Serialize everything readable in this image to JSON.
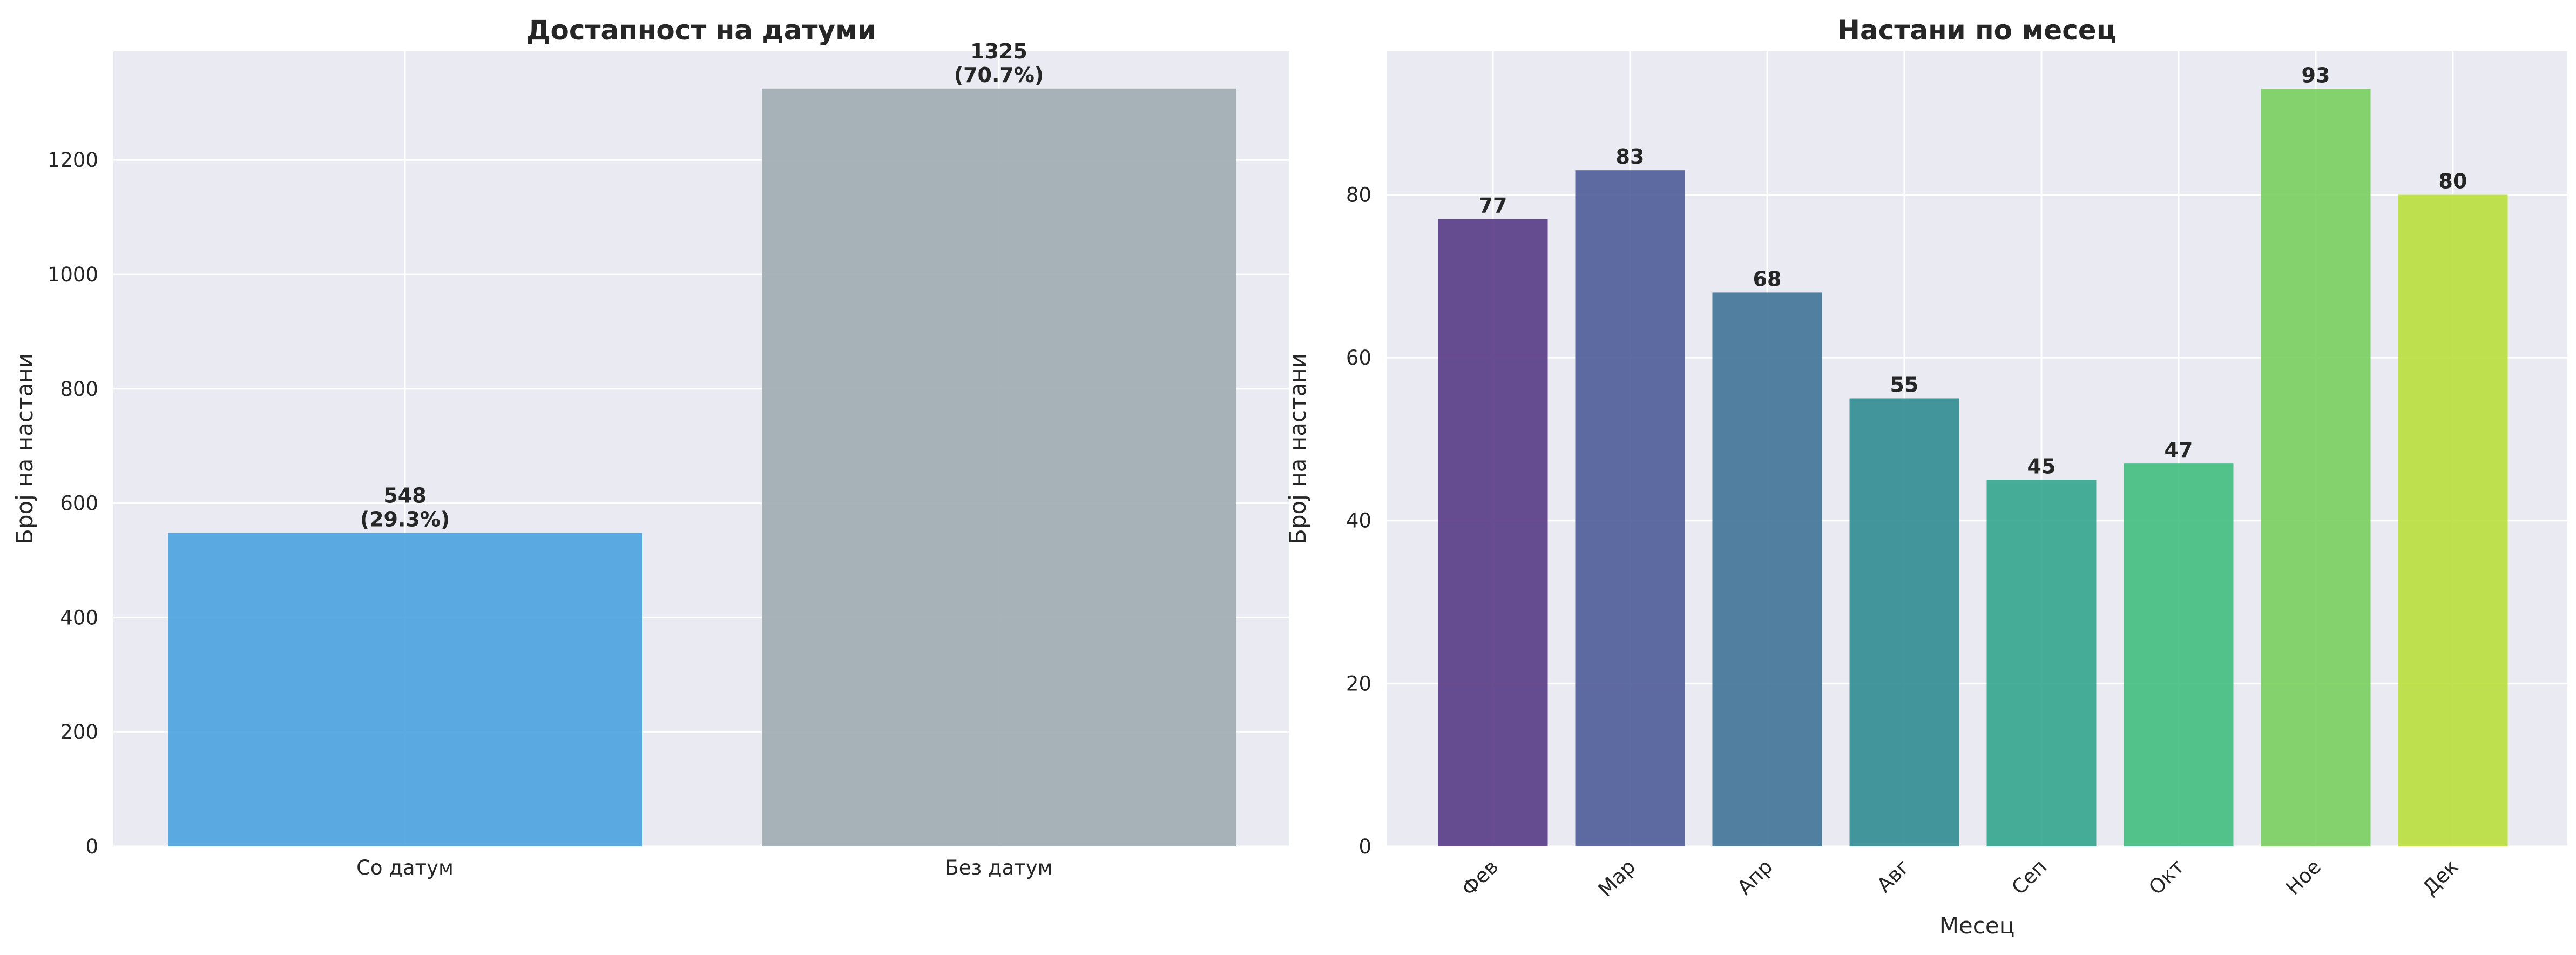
{
  "chart_data": [
    {
      "type": "bar",
      "title": "Достапност на датуми",
      "xlabel": "",
      "ylabel": "Број на настани",
      "categories": [
        "Со датум",
        "Без датум"
      ],
      "values": [
        548,
        1325
      ],
      "value_labels": [
        "548\n(29.3%)",
        "1325\n(70.7%)"
      ],
      "colors": [
        "#4aa3df",
        "#9eabb1"
      ],
      "ylim": [
        0,
        1390
      ],
      "yticks": [
        0,
        200,
        400,
        600,
        800,
        1000,
        1200
      ],
      "grid": true
    },
    {
      "type": "bar",
      "title": "Настани по месец",
      "xlabel": "Месец",
      "ylabel": "Број на настани",
      "categories": [
        "Фев",
        "Мар",
        "Апр",
        "Авг",
        "Сеп",
        "Окт",
        "Ное",
        "Дек"
      ],
      "values": [
        77,
        83,
        68,
        55,
        45,
        47,
        93,
        80
      ],
      "value_labels": [
        "77",
        "83",
        "68",
        "55",
        "45",
        "47",
        "93",
        "80"
      ],
      "colors": [
        "#563a84",
        "#4e5b98",
        "#3f7396",
        "#2f8c91",
        "#33a58e",
        "#43bd7e",
        "#78cf5e",
        "#b9df3c"
      ],
      "ylim": [
        0,
        97.6
      ],
      "yticks": [
        0,
        20,
        40,
        60,
        80
      ],
      "xtick_rotation": 45,
      "grid": true
    }
  ]
}
